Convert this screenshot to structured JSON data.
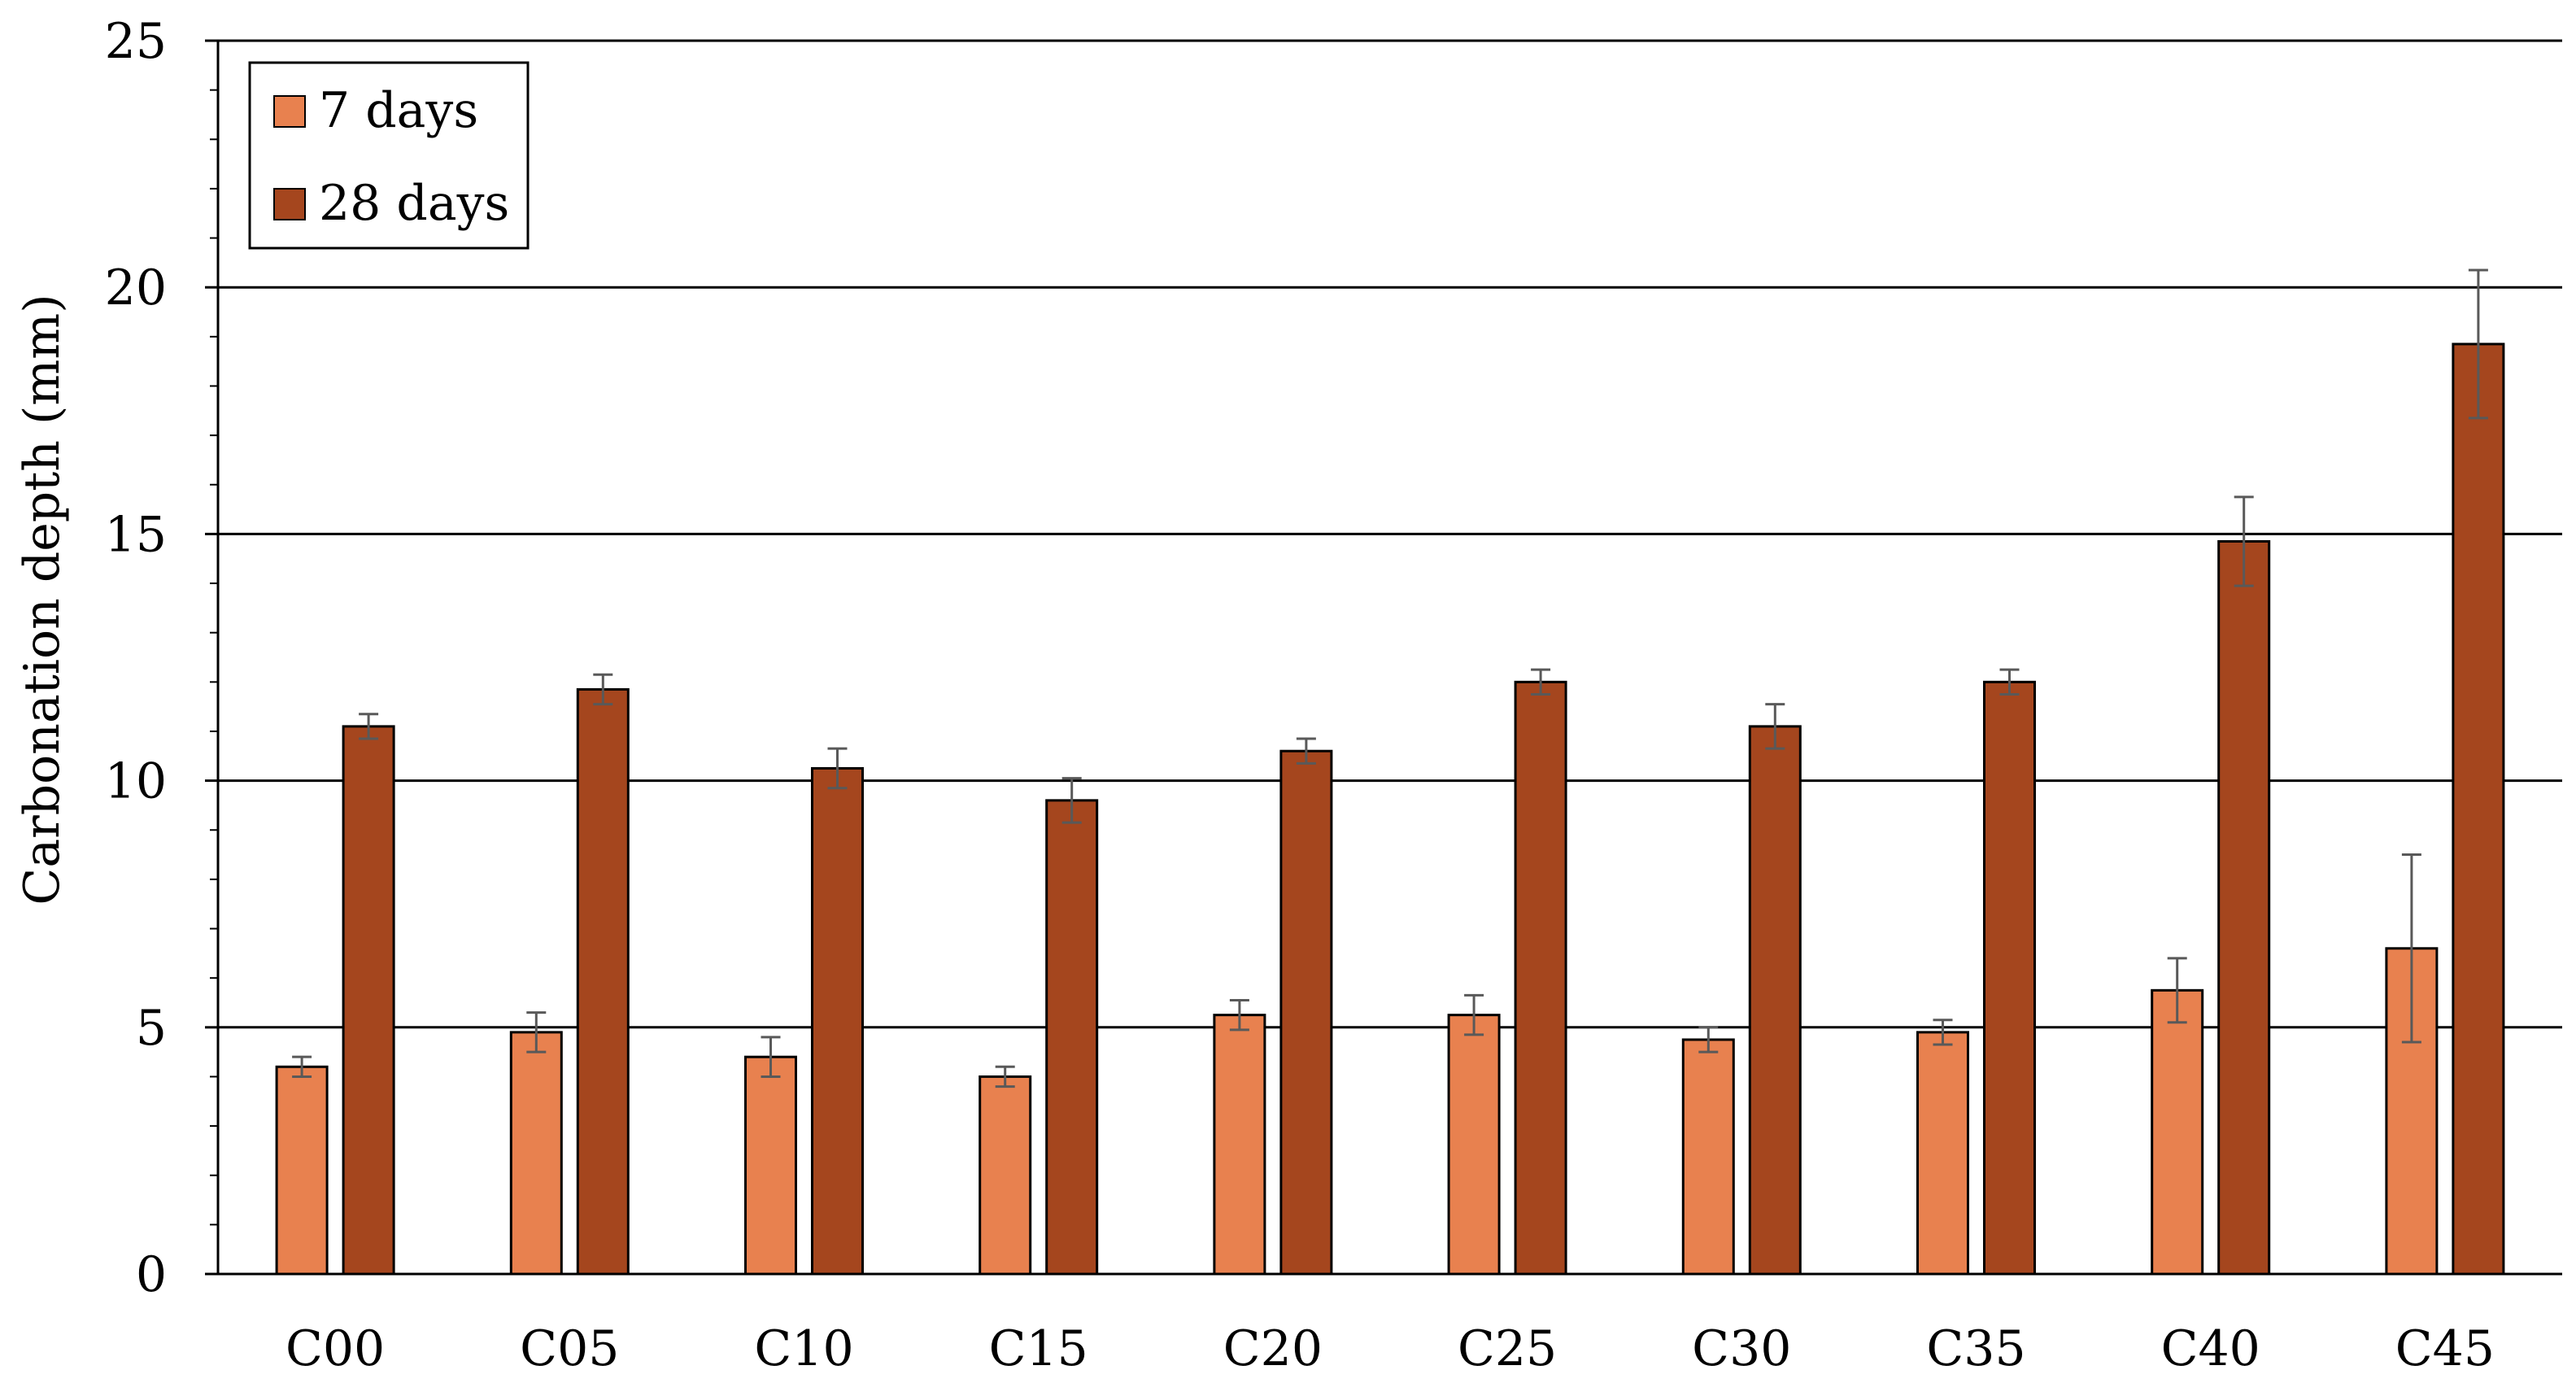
{
  "chart_data": {
    "type": "bar",
    "title": "",
    "xlabel": "",
    "ylabel": "Carbonation depth (mm)",
    "ylim": [
      0,
      25
    ],
    "yticks": [
      0,
      5,
      10,
      15,
      20,
      25
    ],
    "y_minor_step": 1,
    "grid": "horizontal major lines",
    "legend_position": "top-left",
    "categories": [
      "C00",
      "C05",
      "C10",
      "C15",
      "C20",
      "C25",
      "C30",
      "C35",
      "C40",
      "C45"
    ],
    "series": [
      {
        "name": "7 days",
        "color": "#E8814F",
        "values": [
          4.2,
          4.9,
          4.4,
          4.0,
          5.25,
          5.25,
          4.75,
          4.9,
          5.75,
          6.6
        ],
        "errors": [
          0.2,
          0.4,
          0.4,
          0.2,
          0.3,
          0.4,
          0.25,
          0.25,
          0.65,
          1.9
        ]
      },
      {
        "name": "28 days",
        "color": "#A5461E",
        "values": [
          11.1,
          11.85,
          10.25,
          9.6,
          10.6,
          12.0,
          11.1,
          12.0,
          14.85,
          18.85
        ],
        "errors": [
          0.25,
          0.3,
          0.4,
          0.45,
          0.25,
          0.25,
          0.45,
          0.25,
          0.9,
          1.5
        ]
      }
    ]
  }
}
